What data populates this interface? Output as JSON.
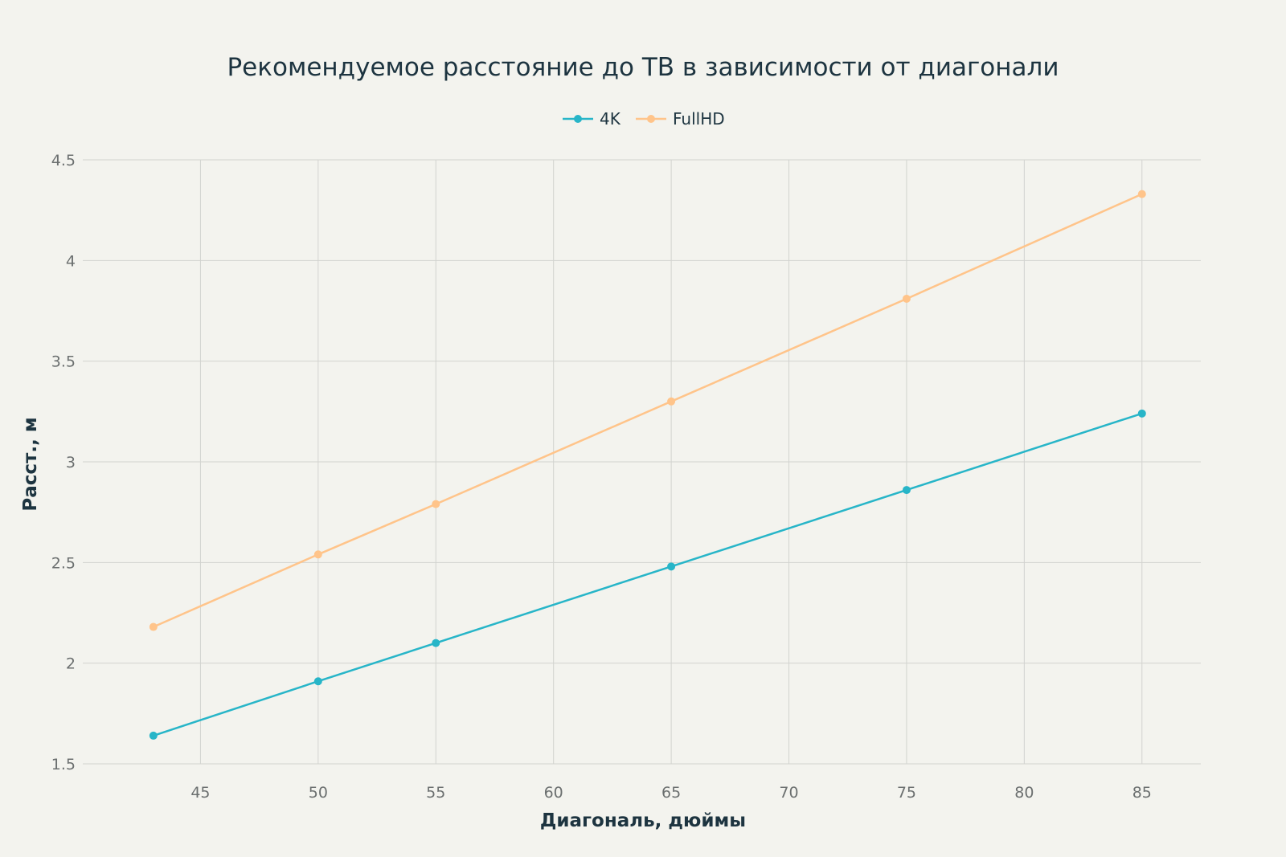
{
  "chart_data": {
    "type": "line",
    "title": "Рекомендуемое расстояние до ТВ  в зависимости от диагонали",
    "xlabel": "Диагональ, дюймы",
    "ylabel": "Расст., м",
    "x": [
      43,
      50,
      55,
      65,
      75,
      85
    ],
    "xlim": [
      40,
      87.5
    ],
    "ylim": [
      1.5,
      4.5
    ],
    "xticks": [
      45,
      50,
      55,
      60,
      65,
      70,
      75,
      80,
      85
    ],
    "yticks": [
      1.5,
      2,
      2.5,
      3,
      3.5,
      4,
      4.5
    ],
    "xtick_labels": [
      "45",
      "50",
      "55",
      "60",
      "65",
      "70",
      "75",
      "80",
      "85"
    ],
    "ytick_labels": [
      "1.5",
      "2",
      "2.5",
      "3",
      "3.5",
      "4",
      "4.5"
    ],
    "grid": true,
    "legend_position": "top-center",
    "series": [
      {
        "name": "4K",
        "color": "#27b5c8",
        "values": [
          1.64,
          1.91,
          2.1,
          2.48,
          2.86,
          3.24
        ]
      },
      {
        "name": "FullHD",
        "color": "#ffc48a",
        "values": [
          2.18,
          2.54,
          2.79,
          3.3,
          3.81,
          4.33
        ]
      }
    ]
  }
}
